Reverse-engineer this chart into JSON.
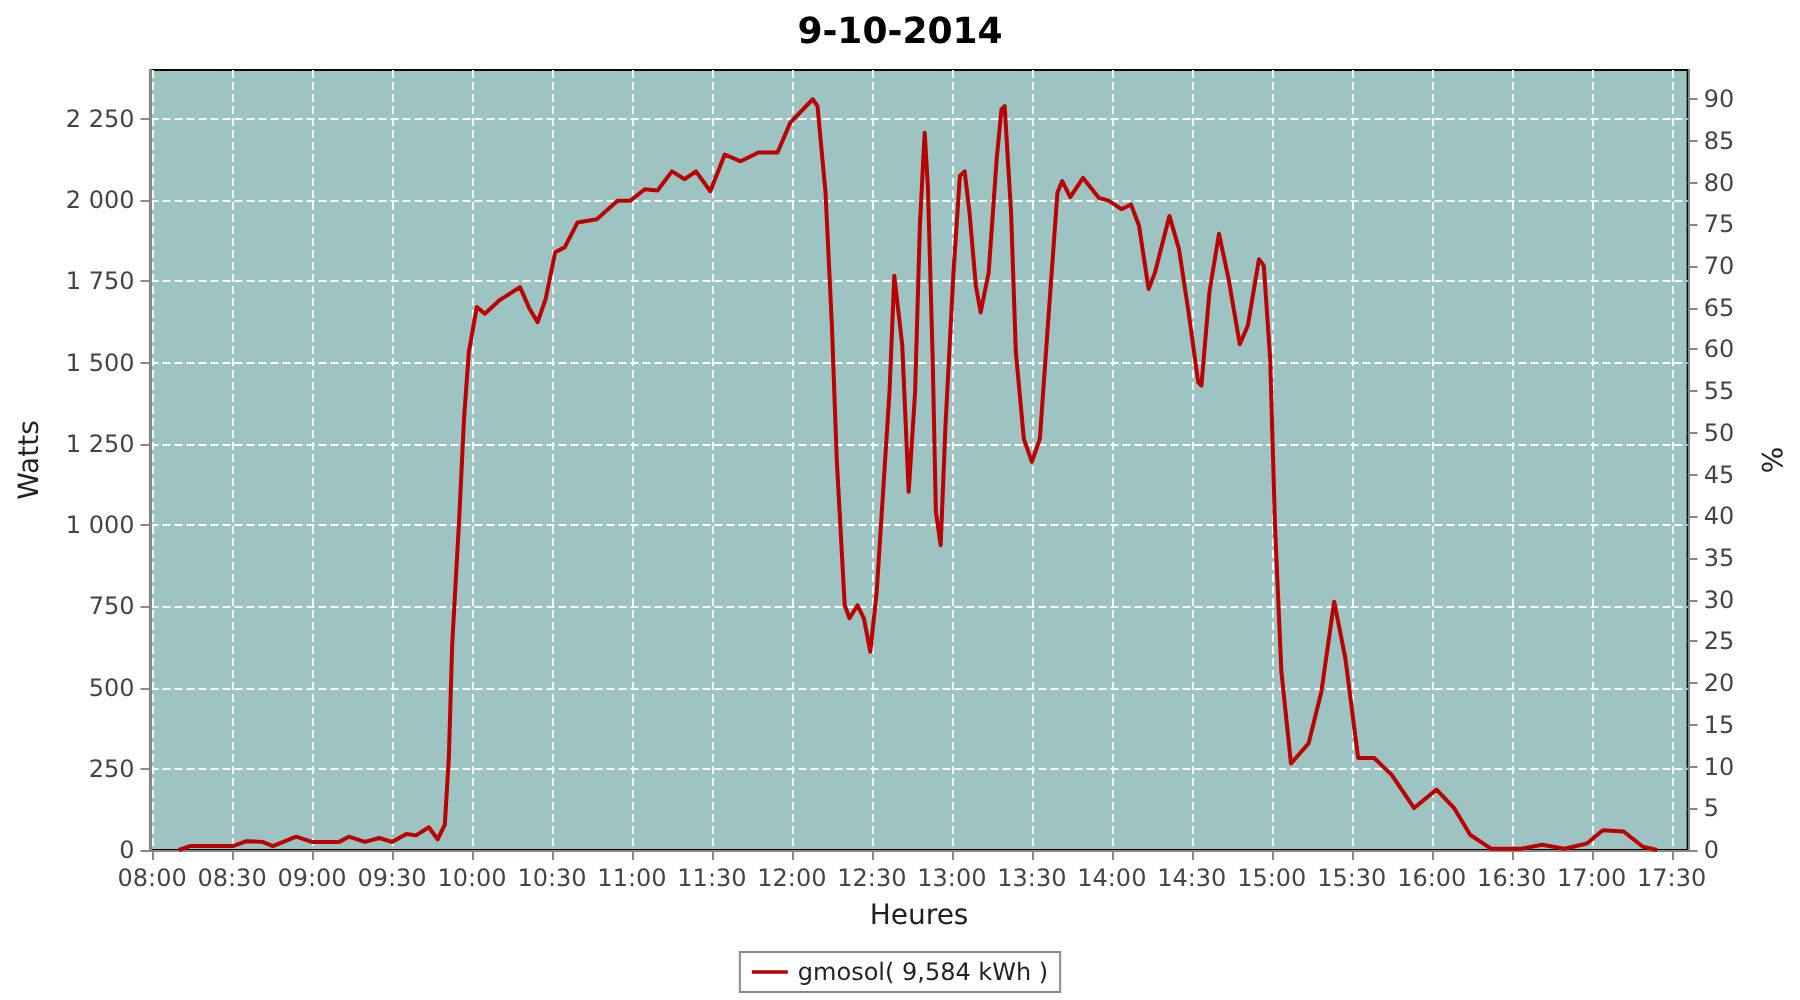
{
  "chart_data": {
    "type": "line",
    "title": "9-10-2014",
    "xlabel": "Heures",
    "ylabel": "Watts",
    "y2label": "%",
    "x": [
      8.166,
      8.237,
      8.506,
      8.59,
      8.69,
      8.755,
      8.9,
      9.0,
      9.17,
      9.23,
      9.33,
      9.42,
      9.5,
      9.59,
      9.65,
      9.73,
      9.785,
      9.83,
      9.855,
      9.876,
      9.92,
      9.95,
      9.98,
      10.03,
      10.08,
      10.17,
      10.3,
      10.36,
      10.41,
      10.46,
      10.52,
      10.58,
      10.66,
      10.78,
      10.91,
      10.99,
      11.08,
      11.16,
      11.25,
      11.33,
      11.4,
      11.49,
      11.58,
      11.68,
      11.79,
      11.91,
      11.99,
      12.13,
      12.16,
      12.21,
      12.25,
      12.28,
      12.33,
      12.36,
      12.41,
      12.45,
      12.49,
      12.53,
      12.57,
      12.61,
      12.64,
      12.69,
      12.73,
      12.77,
      12.8,
      12.83,
      12.85,
      12.88,
      12.9,
      12.93,
      12.96,
      13.01,
      13.05,
      13.08,
      13.11,
      13.15,
      13.18,
      13.23,
      13.28,
      13.31,
      13.33,
      13.37,
      13.4,
      13.45,
      13.5,
      13.55,
      13.6,
      13.66,
      13.69,
      13.74,
      13.82,
      13.92,
      13.98,
      14.06,
      14.12,
      14.17,
      14.23,
      14.27,
      14.36,
      14.42,
      14.48,
      14.54,
      14.56,
      14.61,
      14.67,
      14.73,
      14.8,
      14.85,
      14.92,
      14.95,
      14.99,
      15.02,
      15.06,
      15.12,
      15.23,
      15.31,
      15.39,
      15.46,
      15.54,
      15.64,
      15.75,
      15.89,
      16.03,
      16.14,
      16.24,
      16.37,
      16.56,
      16.69,
      16.83,
      16.97,
      17.07,
      17.2,
      17.32,
      17.41
    ],
    "series": [
      {
        "name": "gmosol( 9,584 kWh )",
        "color": "#bb0000",
        "values": [
          0,
          12,
          12,
          27,
          25,
          12,
          41,
          25,
          25,
          41,
          25,
          37,
          25,
          49,
          45,
          70,
          33,
          78,
          283,
          631,
          1020,
          1327,
          1532,
          1671,
          1650,
          1691,
          1732,
          1665,
          1624,
          1695,
          1839,
          1855,
          1931,
          1941,
          1998,
          1998,
          2033,
          2029,
          2088,
          2064,
          2088,
          2027,
          2140,
          2119,
          2146,
          2146,
          2238,
          2310,
          2289,
          2023,
          1613,
          1204,
          753,
          713,
          753,
          713,
          610,
          794,
          1102,
          1409,
          1767,
          1552,
          1102,
          1409,
          1921,
          2207,
          2043,
          1511,
          1040,
          938,
          1306,
          1777,
          2074,
          2088,
          1962,
          1736,
          1654,
          1777,
          2125,
          2279,
          2289,
          1962,
          1532,
          1265,
          1194,
          1265,
          1613,
          2023,
          2058,
          2009,
          2068,
          2006,
          1998,
          1972,
          1986,
          1921,
          1726,
          1777,
          1951,
          1849,
          1654,
          1439,
          1429,
          1716,
          1896,
          1757,
          1556,
          1613,
          1818,
          1798,
          1511,
          999,
          549,
          266,
          328,
          487,
          764,
          590,
          283,
          283,
          231,
          129,
          186,
          129,
          47,
          4,
          4,
          16,
          4,
          20,
          61,
          57,
          10,
          0
        ]
      }
    ],
    "xlim": [
      7.99,
      17.6
    ],
    "xticks": [
      {
        "value": 8,
        "label": "08:00"
      },
      {
        "value": 8.5,
        "label": "08:30"
      },
      {
        "value": 9,
        "label": "09:00"
      },
      {
        "value": 9.5,
        "label": "09:30"
      },
      {
        "value": 10,
        "label": "10:00"
      },
      {
        "value": 10.5,
        "label": "10:30"
      },
      {
        "value": 11,
        "label": "11:00"
      },
      {
        "value": 11.5,
        "label": "11:30"
      },
      {
        "value": 12,
        "label": "12:00"
      },
      {
        "value": 12.5,
        "label": "12:30"
      },
      {
        "value": 13,
        "label": "13:00"
      },
      {
        "value": 13.5,
        "label": "13:30"
      },
      {
        "value": 14,
        "label": "14:00"
      },
      {
        "value": 14.5,
        "label": "14:30"
      },
      {
        "value": 15,
        "label": "15:00"
      },
      {
        "value": 15.5,
        "label": "15:30"
      },
      {
        "value": 16,
        "label": "16:00"
      },
      {
        "value": 16.5,
        "label": "16:30"
      },
      {
        "value": 17,
        "label": "17:00"
      },
      {
        "value": 17.5,
        "label": "17:30"
      }
    ],
    "ylim": [
      0,
      2400
    ],
    "yticks": [
      0,
      250,
      500,
      750,
      {
        "value": 1000,
        "label": "1 000"
      },
      {
        "value": 1250,
        "label": "1 250"
      },
      {
        "value": 1500,
        "label": "1 500"
      },
      {
        "value": 1750,
        "label": "1 750"
      },
      {
        "value": 2000,
        "label": "2 000"
      },
      {
        "value": 2250,
        "label": "2 250"
      }
    ],
    "y2lim": [
      0,
      93.5
    ],
    "y2ticks": [
      0,
      5,
      10,
      15,
      20,
      25,
      30,
      35,
      40,
      45,
      50,
      55,
      60,
      65,
      70,
      75,
      80,
      85,
      90
    ],
    "grid": true,
    "legend": "bottom",
    "marker": "none",
    "line_style": "solid"
  }
}
